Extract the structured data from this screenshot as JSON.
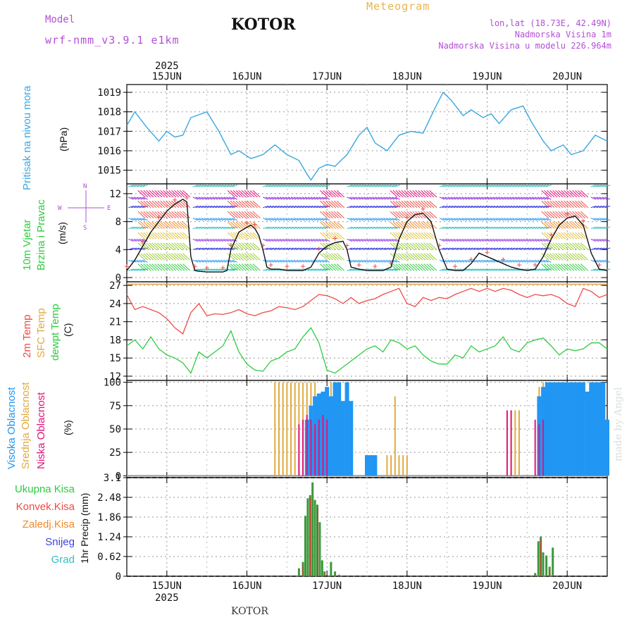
{
  "header": {
    "model_label": "Model",
    "model_name": "wrf-nmm_v3.9.1 e1km",
    "city": "KOTOR",
    "title": "Meteogram",
    "coords": "lon,lat (18.73E, 42.49N)",
    "altitude": "Nadmorska Visina 1m",
    "model_altitude": "Nadmorska Visina u modelu 226.964m"
  },
  "footer": {
    "city": "KOTOR",
    "credit": "made by Angel"
  },
  "colors": {
    "pressure": "#3aa7e0",
    "temp2m": "#ee4b44",
    "sfc": "#e0aa40",
    "dewpt": "#2ecc40",
    "high_cloud": "#2196f3",
    "mid_cloud": "#e0aa40",
    "low_cloud": "#e0157b",
    "total_precip": "#3a9a3a",
    "conv_precip": "#e03030",
    "frz_precip": "#f08a2a",
    "snow": "#4040e0",
    "hail": "#30c0c0",
    "wind_label": "#2ecc40",
    "compass": "#b34fd6"
  },
  "labels": {
    "pressure": "Pritisak na nivou mora",
    "pressure_unit": "(hPa)",
    "wind1": "10m Vjetar",
    "wind2": "Brzina i Pravac",
    "wind_unit": "(m/s)",
    "compass_n": "N",
    "compass_e": "E",
    "compass_w": "W",
    "compass_s": "S",
    "temp1": "2m Temp",
    "temp2": "SFC Temp",
    "temp3": "dewpt Temp",
    "temp_unit": "(C)",
    "cloud1": "Visoka Oblacnost",
    "cloud2": "Srednja Oblacnost",
    "cloud3": "Niska Oblacnost",
    "cloud_unit": "(%)",
    "precip_unit": "1hr Precip (mm)",
    "precip_leg": [
      "Ukupna Kisa",
      "Konvek.Kisa",
      "Zaledj.Kisa",
      "Snijeg",
      "Grad"
    ]
  },
  "chart_data": [
    {
      "type": "line",
      "title": "Pritisak na nivou mora",
      "ylabel": "(hPa)",
      "x_days": [
        "15JUN",
        "16JUN",
        "17JUN",
        "18JUN",
        "19JUN",
        "20JUN"
      ],
      "year": "2025",
      "ylim": [
        1014.3,
        1019.4
      ],
      "yticks": [
        1015,
        1016,
        1017,
        1018,
        1019
      ],
      "grid": true,
      "x": [
        14.5,
        14.6,
        14.75,
        14.9,
        15.0,
        15.1,
        15.2,
        15.3,
        15.5,
        15.65,
        15.8,
        15.9,
        16.05,
        16.2,
        16.35,
        16.5,
        16.65,
        16.75,
        16.8,
        16.9,
        17.0,
        17.1,
        17.25,
        17.4,
        17.5,
        17.6,
        17.75,
        17.9,
        18.05,
        18.2,
        18.35,
        18.45,
        18.55,
        18.7,
        18.8,
        18.95,
        19.05,
        19.15,
        19.3,
        19.45,
        19.55,
        19.7,
        19.8,
        19.95,
        20.05,
        20.2,
        20.35,
        20.5
      ],
      "y": [
        1017.3,
        1018.0,
        1017.2,
        1016.5,
        1017.0,
        1016.7,
        1016.8,
        1017.7,
        1018.0,
        1017.0,
        1015.8,
        1016.0,
        1015.6,
        1015.8,
        1016.3,
        1015.8,
        1015.5,
        1014.8,
        1014.5,
        1015.1,
        1015.3,
        1015.2,
        1015.8,
        1016.8,
        1017.2,
        1016.4,
        1016.0,
        1016.8,
        1017.0,
        1016.9,
        1018.2,
        1019.0,
        1018.6,
        1017.8,
        1018.1,
        1017.7,
        1017.9,
        1017.4,
        1018.1,
        1018.3,
        1017.5,
        1016.5,
        1016.0,
        1016.3,
        1015.8,
        1016.0,
        1016.8,
        1016.5
      ]
    },
    {
      "type": "line",
      "title": "10m Vjetar Brzina i Pravac",
      "ylabel": "(m/s)",
      "ylim": [
        -0.6,
        13.4
      ],
      "yticks": [
        0,
        4,
        8,
        12
      ],
      "grid": true,
      "series": [
        {
          "x": [
            14.5,
            14.6,
            14.7,
            14.8,
            14.9,
            15.0,
            15.1,
            15.2,
            15.25,
            15.3,
            15.35,
            15.4,
            15.5,
            15.6,
            15.7,
            15.75,
            15.8,
            15.9,
            16.0,
            16.05,
            16.1,
            16.15,
            16.2,
            16.25,
            16.3,
            16.4,
            16.5,
            16.6,
            16.7,
            16.8,
            16.9,
            17.0,
            17.1,
            17.2,
            17.25,
            17.3,
            17.4,
            17.5,
            17.6,
            17.7,
            17.8,
            17.9,
            18.0,
            18.1,
            18.2,
            18.3,
            18.4,
            18.5,
            18.6,
            18.7,
            18.8,
            18.9,
            19.0,
            19.1,
            19.2,
            19.3,
            19.4,
            19.5,
            19.6,
            19.7,
            19.8,
            19.9,
            20.0,
            20.1,
            20.2,
            20.3,
            20.4,
            20.5
          ],
          "y": [
            1.0,
            2.5,
            4.5,
            6.5,
            8.0,
            9.5,
            10.5,
            11.2,
            10.8,
            3.0,
            1.0,
            0.9,
            0.8,
            0.8,
            0.8,
            1.0,
            4.0,
            6.5,
            7.2,
            7.5,
            7.0,
            6.0,
            4.0,
            1.5,
            1.2,
            1.2,
            1.0,
            1.0,
            1.0,
            1.5,
            3.5,
            4.5,
            5.0,
            5.2,
            4.0,
            1.5,
            1.2,
            1.0,
            1.0,
            1.0,
            1.5,
            5.5,
            8.0,
            9.0,
            9.2,
            8.0,
            4.0,
            1.2,
            1.0,
            1.0,
            2.0,
            3.5,
            3.0,
            2.5,
            2.0,
            1.5,
            1.2,
            1.0,
            1.2,
            3.0,
            5.5,
            7.5,
            8.5,
            8.8,
            7.5,
            3.5,
            1.2,
            1.0
          ]
        }
      ],
      "barb_rows": [
        1,
        2.5,
        4,
        5.5,
        7,
        8.5,
        10,
        11.5,
        13
      ]
    },
    {
      "type": "line",
      "title": "2m Temp / SFC Temp / dewpt Temp",
      "ylabel": "(C)",
      "ylim": [
        11.3,
        27.6
      ],
      "yticks": [
        12,
        15,
        18,
        21,
        24,
        27
      ],
      "grid": true,
      "series": [
        {
          "x": [
            14.5,
            14.6,
            14.7,
            14.8,
            14.9,
            15.0,
            15.1,
            15.2,
            15.3,
            15.4,
            15.5,
            15.6,
            15.7,
            15.8,
            15.9,
            16.0,
            16.1,
            16.2,
            16.3,
            16.4,
            16.5,
            16.6,
            16.7,
            16.8,
            16.9,
            17.0,
            17.1,
            17.2,
            17.3,
            17.4,
            17.5,
            17.6,
            17.7,
            17.8,
            17.9,
            18.0,
            18.1,
            18.2,
            18.3,
            18.4,
            18.5,
            18.6,
            18.7,
            18.8,
            18.9,
            19.0,
            19.1,
            19.2,
            19.3,
            19.4,
            19.5,
            19.6,
            19.7,
            19.8,
            19.9,
            20.0,
            20.1,
            20.2,
            20.3,
            20.4,
            20.5
          ],
          "y": [
            25.5,
            23.0,
            23.5,
            23.0,
            22.5,
            21.5,
            20.0,
            19.0,
            22.5,
            24.0,
            22.0,
            22.3,
            22.2,
            22.5,
            23.0,
            22.3,
            22.0,
            22.5,
            22.8,
            23.5,
            23.3,
            23.0,
            23.5,
            24.5,
            25.5,
            25.3,
            24.8,
            24.0,
            25.0,
            24.0,
            24.5,
            24.8,
            25.5,
            26.0,
            26.5,
            24.0,
            23.5,
            25.0,
            24.5,
            25.0,
            24.8,
            25.5,
            26.0,
            26.5,
            26.0,
            26.5,
            26.0,
            26.5,
            26.2,
            25.5,
            25.0,
            25.5,
            25.3,
            25.5,
            25.0,
            24.0,
            23.5,
            26.5,
            26.0,
            25.0,
            25.5
          ]
        },
        {
          "x": [
            14.5,
            20.5
          ],
          "y": [
            27.2,
            27.2
          ]
        },
        {
          "x": [
            14.5,
            14.6,
            14.7,
            14.8,
            14.9,
            15.0,
            15.1,
            15.2,
            15.3,
            15.4,
            15.5,
            15.6,
            15.7,
            15.8,
            15.9,
            16.0,
            16.1,
            16.2,
            16.3,
            16.4,
            16.5,
            16.6,
            16.7,
            16.8,
            16.9,
            17.0,
            17.1,
            17.2,
            17.3,
            17.4,
            17.5,
            17.6,
            17.7,
            17.8,
            17.9,
            18.0,
            18.1,
            18.2,
            18.3,
            18.4,
            18.5,
            18.6,
            18.7,
            18.8,
            18.9,
            19.0,
            19.1,
            19.2,
            19.3,
            19.4,
            19.5,
            19.6,
            19.7,
            19.8,
            19.9,
            20.0,
            20.1,
            20.2,
            20.3,
            20.4,
            20.5
          ],
          "y": [
            17.0,
            18.0,
            16.5,
            18.5,
            16.5,
            15.5,
            15.0,
            14.2,
            12.5,
            16.0,
            15.0,
            16.0,
            17.0,
            19.5,
            16.0,
            14.0,
            13.0,
            12.8,
            14.5,
            15.0,
            16.0,
            16.5,
            18.5,
            20.0,
            17.5,
            13.0,
            12.5,
            13.5,
            14.5,
            15.5,
            16.5,
            17.0,
            16.0,
            18.0,
            17.5,
            16.5,
            17.0,
            15.5,
            14.5,
            14.0,
            14.0,
            15.5,
            15.0,
            17.0,
            16.0,
            16.5,
            17.0,
            18.5,
            16.5,
            16.0,
            17.5,
            18.0,
            18.3,
            17.0,
            15.5,
            16.5,
            16.2,
            16.5,
            17.5,
            17.5,
            16.5
          ]
        }
      ]
    },
    {
      "type": "bar",
      "title": "Oblacnost",
      "ylabel": "(%)",
      "ylim": [
        -2,
        102
      ],
      "yticks": [
        0,
        25,
        50,
        75,
        100
      ],
      "grid": true,
      "series": [
        {
          "x": [
            16.75,
            16.8,
            16.85,
            16.9,
            16.95,
            17.0,
            17.05,
            17.1,
            17.15,
            17.2,
            17.25,
            17.3,
            17.5,
            17.55,
            17.6,
            19.65,
            19.7,
            19.75,
            19.8,
            19.85,
            19.9,
            19.95,
            20.0,
            20.05,
            20.1,
            20.15,
            20.2,
            20.25,
            20.3,
            20.35,
            20.4,
            20.45,
            20.5
          ],
          "values": [
            60,
            75,
            85,
            88,
            90,
            95,
            85,
            100,
            100,
            80,
            100,
            80,
            22,
            22,
            22,
            85,
            95,
            100,
            100,
            100,
            100,
            100,
            100,
            100,
            100,
            100,
            100,
            90,
            100,
            100,
            100,
            100,
            60
          ]
        },
        {
          "x": [
            16.35,
            16.4,
            16.45,
            16.5,
            16.55,
            16.6,
            16.65,
            16.7,
            16.75,
            16.8,
            16.85,
            16.9,
            16.95,
            17.0,
            17.05,
            17.1,
            17.15,
            17.2,
            17.25,
            17.5,
            17.55,
            17.6,
            17.75,
            17.8,
            17.85,
            17.9,
            17.95,
            18.0,
            19.3,
            19.35,
            19.4,
            19.65,
            19.7,
            19.75,
            19.8,
            19.85,
            19.9,
            19.95,
            20.0,
            20.05,
            20.1
          ],
          "values": [
            100,
            100,
            100,
            100,
            100,
            100,
            100,
            100,
            100,
            100,
            100,
            85,
            80,
            90,
            100,
            85,
            70,
            60,
            80,
            22,
            22,
            15,
            22,
            22,
            85,
            22,
            22,
            22,
            70,
            70,
            70,
            95,
            100,
            100,
            90,
            100,
            100,
            95,
            100,
            90,
            95
          ]
        },
        {
          "x": [
            16.65,
            16.7,
            16.75,
            16.8,
            16.85,
            16.9,
            16.95,
            17.0,
            19.25,
            19.3,
            19.6,
            19.65,
            19.7
          ],
          "values": [
            55,
            60,
            65,
            60,
            55,
            60,
            65,
            60,
            70,
            70,
            60,
            55,
            60
          ]
        }
      ]
    },
    {
      "type": "bar",
      "title": "1hr Precip",
      "ylabel": "1hr Precip (mm)",
      "ylim": [
        0,
        3.1
      ],
      "yticks": [
        0,
        0.62,
        1.24,
        1.86,
        2.48,
        3.1
      ],
      "grid": true,
      "categories": [
        "16.65",
        "16.70",
        "16.73",
        "16.76",
        "16.79",
        "16.82",
        "16.85",
        "16.88",
        "16.91",
        "16.94",
        "16.97",
        "17.05",
        "17.10",
        "17.15",
        "19.60",
        "19.64",
        "19.67",
        "19.70",
        "19.74",
        "19.78",
        "19.82"
      ],
      "values": [
        0.25,
        0.45,
        1.9,
        2.45,
        2.55,
        2.95,
        2.4,
        2.25,
        1.7,
        0.5,
        0.15,
        0.45,
        0.15,
        0.05,
        0.1,
        1.1,
        1.25,
        0.75,
        0.65,
        0.3,
        0.9
      ]
    }
  ]
}
